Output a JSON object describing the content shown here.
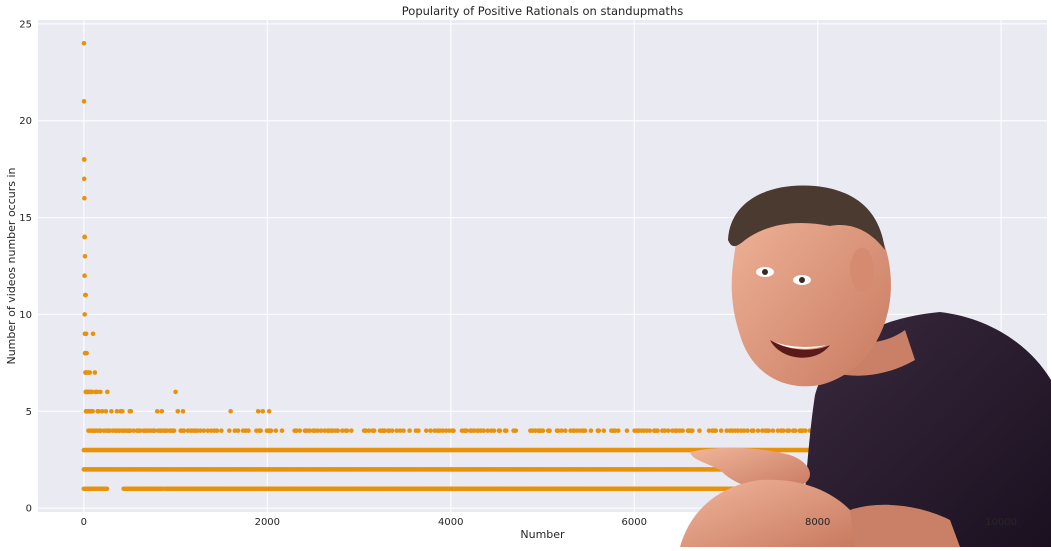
{
  "chart_data": {
    "type": "scatter",
    "title": "Popularity of Positive Rationals on standupmaths",
    "xlabel": "Number",
    "ylabel": "Number of videos number occurs in",
    "xlim": [
      -500,
      10500
    ],
    "ylim": [
      -0.2,
      25.2
    ],
    "xticks": [
      0,
      2000,
      4000,
      6000,
      8000,
      10000
    ],
    "yticks": [
      0,
      5,
      10,
      15,
      20,
      25
    ],
    "grid": true,
    "background": "#eaeaf2",
    "grid_color": "#ffffff",
    "marker_color": "#e8920a",
    "series": [
      {
        "points": [
          [
            1,
            24
          ],
          [
            2,
            21
          ],
          [
            3,
            18
          ],
          [
            5,
            18
          ],
          [
            4,
            17
          ],
          [
            6,
            16
          ],
          [
            7,
            14
          ],
          [
            10,
            14
          ],
          [
            12,
            13
          ],
          [
            8,
            12
          ],
          [
            15,
            11
          ],
          [
            20,
            11
          ],
          [
            9,
            10
          ],
          [
            11,
            9
          ],
          [
            16,
            9
          ],
          [
            25,
            9
          ],
          [
            100,
            9
          ],
          [
            13,
            8
          ],
          [
            14,
            8
          ],
          [
            18,
            8
          ],
          [
            30,
            8
          ],
          [
            17,
            7
          ],
          [
            19,
            7
          ],
          [
            24,
            7
          ],
          [
            40,
            7
          ],
          [
            50,
            7
          ],
          [
            64,
            7
          ],
          [
            120,
            7
          ],
          [
            21,
            6
          ],
          [
            22,
            6
          ],
          [
            32,
            6
          ],
          [
            36,
            6
          ],
          [
            48,
            6
          ],
          [
            60,
            6
          ],
          [
            72,
            6
          ],
          [
            90,
            6
          ],
          [
            128,
            6
          ],
          [
            144,
            6
          ],
          [
            180,
            6
          ],
          [
            256,
            6
          ],
          [
            1000,
            6
          ],
          [
            23,
            5
          ],
          [
            26,
            5
          ],
          [
            27,
            5
          ],
          [
            28,
            5
          ],
          [
            35,
            5
          ],
          [
            42,
            5
          ],
          [
            45,
            5
          ],
          [
            55,
            5
          ],
          [
            65,
            5
          ],
          [
            70,
            5
          ],
          [
            75,
            5
          ],
          [
            80,
            5
          ],
          [
            96,
            5
          ],
          [
            150,
            5
          ],
          [
            160,
            5
          ],
          [
            200,
            5
          ],
          [
            240,
            5
          ],
          [
            300,
            5
          ],
          [
            360,
            5
          ],
          [
            400,
            5
          ],
          [
            420,
            5
          ],
          [
            500,
            5
          ],
          [
            512,
            5
          ],
          [
            800,
            5
          ],
          [
            850,
            5
          ],
          [
            1024,
            5
          ],
          [
            1080,
            5
          ],
          [
            1600,
            5
          ],
          [
            1900,
            5
          ],
          [
            1950,
            5
          ],
          [
            2020,
            5
          ]
        ]
      }
    ]
  }
}
